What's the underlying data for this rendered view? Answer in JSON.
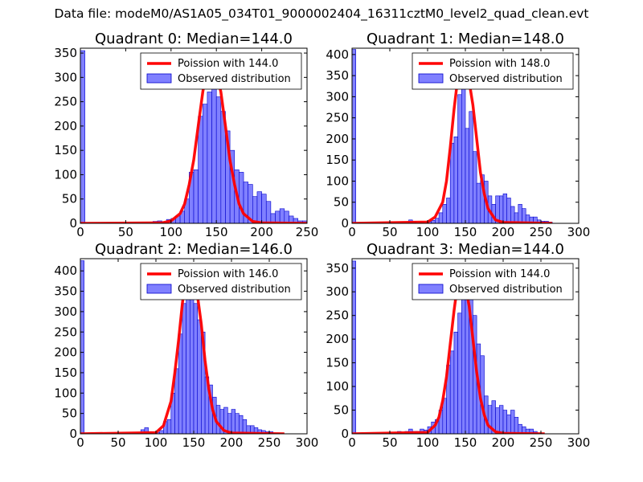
{
  "figure": {
    "title": "Data file: modeM0/AS1A05_034T01_9000002404_16311cztM0_level2_quad_clean.evt"
  },
  "colors": {
    "bar_fill": "#8080ff",
    "bar_edge": "#0000cc",
    "poisson_line": "#ff0000",
    "axes": "#000000"
  },
  "chart_data": [
    {
      "type": "bar",
      "title": "Quadrant 0: Median=144.0",
      "xlim": [
        0,
        250
      ],
      "ylim": [
        0,
        360
      ],
      "xticks": [
        0,
        50,
        100,
        150,
        200,
        250
      ],
      "yticks": [
        0,
        50,
        100,
        150,
        200,
        250,
        300,
        350
      ],
      "bin_width": 5,
      "legend": {
        "line_label": "Poission with 144.0",
        "bar_label": "Observed distribution",
        "position": "top-right"
      },
      "histogram": {
        "bin_starts": [
          0,
          80,
          85,
          90,
          95,
          100,
          105,
          110,
          115,
          120,
          125,
          130,
          135,
          140,
          145,
          150,
          155,
          160,
          165,
          170,
          175,
          180,
          185,
          190,
          195,
          200,
          205,
          210,
          215,
          220,
          225,
          230,
          235,
          240,
          245
        ],
        "counts": [
          355,
          4,
          5,
          3,
          8,
          10,
          15,
          25,
          50,
          105,
          110,
          220,
          245,
          270,
          300,
          260,
          230,
          190,
          150,
          110,
          105,
          85,
          80,
          55,
          65,
          60,
          45,
          20,
          25,
          30,
          25,
          15,
          10,
          5,
          5
        ]
      },
      "poisson": {
        "mean": 144.0,
        "x": [
          0,
          90,
          100,
          110,
          115,
          120,
          125,
          130,
          135,
          140,
          144,
          148,
          155,
          160,
          165,
          170,
          175,
          180,
          190,
          200,
          250
        ],
        "y": [
          0,
          1,
          5,
          20,
          40,
          80,
          130,
          200,
          270,
          325,
          345,
          330,
          270,
          200,
          130,
          80,
          40,
          20,
          4,
          1,
          0
        ]
      }
    },
    {
      "type": "bar",
      "title": "Quadrant 1: Median=148.0",
      "xlim": [
        0,
        300
      ],
      "ylim": [
        0,
        415
      ],
      "xticks": [
        0,
        50,
        100,
        150,
        200,
        250,
        300
      ],
      "yticks": [
        0,
        50,
        100,
        150,
        200,
        250,
        300,
        350,
        400
      ],
      "bin_width": 5,
      "legend": {
        "line_label": "Poission with 148.0",
        "bar_label": "Observed distribution",
        "position": "top-right"
      },
      "histogram": {
        "bin_starts": [
          0,
          75,
          80,
          90,
          100,
          105,
          110,
          115,
          120,
          125,
          130,
          135,
          140,
          145,
          150,
          155,
          160,
          165,
          170,
          175,
          180,
          185,
          190,
          195,
          200,
          205,
          210,
          215,
          220,
          225,
          230,
          235,
          240,
          245,
          250,
          255,
          260
        ],
        "counts": [
          412,
          8,
          5,
          3,
          5,
          7,
          12,
          25,
          45,
          60,
          190,
          205,
          305,
          360,
          225,
          265,
          170,
          95,
          115,
          100,
          65,
          45,
          65,
          65,
          70,
          60,
          40,
          25,
          45,
          35,
          20,
          15,
          15,
          8,
          5,
          5,
          3
        ]
      },
      "poisson": {
        "mean": 148.0,
        "x": [
          0,
          100,
          110,
          120,
          125,
          130,
          135,
          140,
          145,
          148,
          152,
          160,
          165,
          170,
          175,
          180,
          190,
          200,
          265
        ],
        "y": [
          0,
          3,
          15,
          50,
          100,
          180,
          270,
          345,
          385,
          390,
          370,
          280,
          200,
          120,
          70,
          35,
          8,
          2,
          0
        ]
      }
    },
    {
      "type": "bar",
      "title": "Quadrant 2: Median=146.0",
      "xlim": [
        0,
        300
      ],
      "ylim": [
        0,
        430
      ],
      "xticks": [
        0,
        50,
        100,
        150,
        200,
        250,
        300
      ],
      "yticks": [
        0,
        50,
        100,
        150,
        200,
        250,
        300,
        350,
        400
      ],
      "bin_width": 5,
      "legend": {
        "line_label": "Poission with 146.0",
        "bar_label": "Observed distribution",
        "position": "top-right"
      },
      "histogram": {
        "bin_starts": [
          0,
          80,
          85,
          90,
          100,
          105,
          110,
          115,
          120,
          125,
          130,
          135,
          140,
          145,
          150,
          155,
          160,
          165,
          170,
          175,
          180,
          185,
          190,
          195,
          200,
          205,
          210,
          215,
          220,
          225,
          230,
          235,
          240,
          245,
          250
        ],
        "counts": [
          425,
          10,
          15,
          5,
          3,
          8,
          30,
          35,
          100,
          160,
          245,
          320,
          350,
          395,
          320,
          280,
          250,
          140,
          120,
          90,
          70,
          60,
          65,
          50,
          60,
          50,
          45,
          35,
          20,
          20,
          15,
          10,
          8,
          5,
          5
        ]
      },
      "poisson": {
        "mean": 146.0,
        "x": [
          0,
          100,
          110,
          120,
          125,
          130,
          135,
          140,
          146,
          152,
          160,
          165,
          170,
          175,
          180,
          190,
          200,
          270
        ],
        "y": [
          0,
          3,
          20,
          80,
          150,
          230,
          320,
          390,
          415,
          380,
          270,
          180,
          110,
          60,
          30,
          8,
          2,
          0
        ]
      }
    },
    {
      "type": "bar",
      "title": "Quadrant 3: Median=144.0",
      "xlim": [
        0,
        300
      ],
      "ylim": [
        0,
        370
      ],
      "xticks": [
        0,
        50,
        100,
        150,
        200,
        250,
        300
      ],
      "yticks": [
        0,
        50,
        100,
        150,
        200,
        250,
        300,
        350
      ],
      "bin_width": 5,
      "legend": {
        "line_label": "Poission with 144.0",
        "bar_label": "Observed distribution",
        "position": "top-right"
      },
      "histogram": {
        "bin_starts": [
          0,
          60,
          70,
          75,
          80,
          85,
          90,
          95,
          100,
          105,
          110,
          115,
          120,
          125,
          130,
          135,
          140,
          145,
          150,
          155,
          160,
          165,
          170,
          175,
          180,
          185,
          190,
          195,
          200,
          205,
          210,
          215,
          220,
          225,
          230,
          235,
          240
        ],
        "counts": [
          365,
          5,
          5,
          10,
          5,
          5,
          10,
          8,
          15,
          25,
          30,
          50,
          75,
          145,
          175,
          215,
          255,
          285,
          325,
          290,
          250,
          190,
          165,
          80,
          60,
          70,
          55,
          60,
          50,
          40,
          50,
          35,
          20,
          15,
          10,
          10,
          5
        ]
      },
      "poisson": {
        "mean": 144.0,
        "x": [
          0,
          100,
          110,
          115,
          120,
          125,
          130,
          135,
          140,
          144,
          148,
          155,
          160,
          165,
          170,
          175,
          180,
          190,
          200,
          255
        ],
        "y": [
          0,
          3,
          18,
          35,
          70,
          120,
          190,
          260,
          320,
          345,
          330,
          270,
          200,
          130,
          75,
          40,
          18,
          4,
          1,
          0
        ]
      }
    }
  ]
}
